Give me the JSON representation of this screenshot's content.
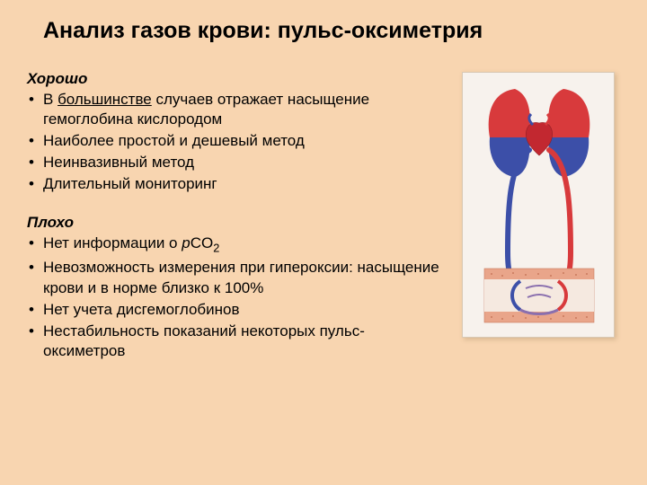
{
  "title": "Анализ газов крови: пульс-оксиметрия",
  "good": {
    "heading": "Хорошо",
    "items": [
      "В <span class=\"u\">большинстве</span> случаев отражает насыщение гемоглобина кислородом",
      "Наиболее простой и дешевый метод",
      "Неинвазивный метод",
      "Длительный мониторинг"
    ]
  },
  "bad": {
    "heading": "Плохо",
    "items": [
      "Нет информации о <span class=\"ital\">p</span>CO<sub>2</sub>",
      "Невозможность измерения при гипероксии: насыщение крови и в норме близко к 100%",
      "Нет учета дисгемоглобинов",
      "Нестабильность показаний некоторых пульс-оксиметров"
    ]
  },
  "figure": {
    "bg": "#f7f2ed",
    "lung_red": "#d83a3c",
    "lung_blue": "#3c4fa8",
    "heart": "#c22830",
    "artery": "#d83a3c",
    "vein": "#3c4fa8",
    "tissue_fill": "#e9a58a",
    "tissue_dots": "#c97a5e",
    "border": "#d9c8b3"
  }
}
